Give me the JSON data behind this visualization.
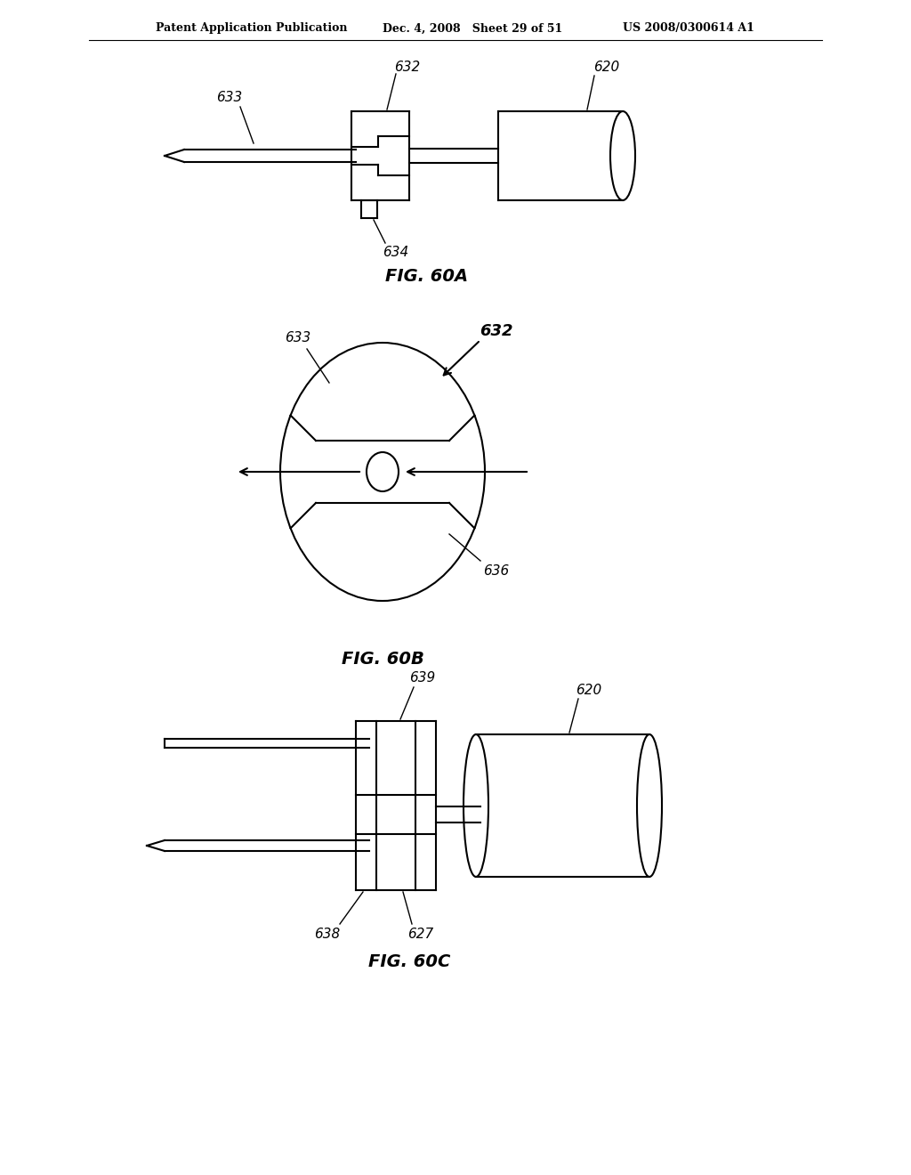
{
  "bg_color": "#ffffff",
  "line_color": "#000000",
  "header_text_left": "Patent Application Publication",
  "header_text_mid": "Dec. 4, 2008   Sheet 29 of 51",
  "header_text_right": "US 2008/0300614 A1",
  "fig60a_label": "FIG. 60A",
  "fig60b_label": "FIG. 60B",
  "fig60c_label": "FIG. 60C"
}
